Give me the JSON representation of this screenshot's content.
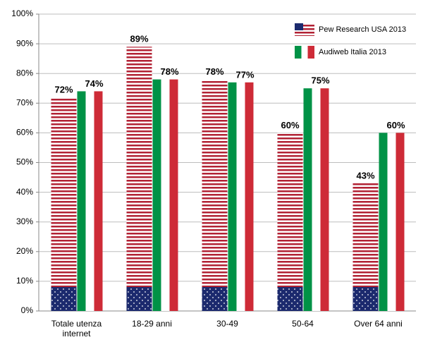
{
  "chart_data": {
    "type": "bar",
    "categories": [
      "Totale utenza internet",
      "18-29 anni",
      "30-49",
      "50-64",
      "Over 64 anni"
    ],
    "series": [
      {
        "name": "Pew Research USA 2013",
        "color": "#b22234",
        "values": [
          72,
          89,
          78,
          60,
          43
        ],
        "value_labels": [
          "72%",
          "89%",
          "78%",
          "60%",
          "43%"
        ]
      },
      {
        "name": "Audiweb Italia 2013",
        "color": "#009246",
        "values": [
          74,
          78,
          77,
          75,
          60
        ],
        "value_labels": [
          "74%",
          "78%",
          "77%",
          "75%",
          "60%"
        ]
      }
    ],
    "ylim": [
      0,
      100
    ],
    "yticks": [
      {
        "value": 0,
        "label": "0%"
      },
      {
        "value": 10,
        "label": "10%"
      },
      {
        "value": 20,
        "label": "20%"
      },
      {
        "value": 30,
        "label": "30%"
      },
      {
        "value": 40,
        "label": "40%"
      },
      {
        "value": 50,
        "label": "50%"
      },
      {
        "value": 60,
        "label": "60%"
      },
      {
        "value": 70,
        "label": "70%"
      },
      {
        "value": 80,
        "label": "80%"
      },
      {
        "value": 90,
        "label": "90%"
      },
      {
        "value": 100,
        "label": "100%"
      }
    ],
    "grid": true,
    "legend": "upper right"
  }
}
